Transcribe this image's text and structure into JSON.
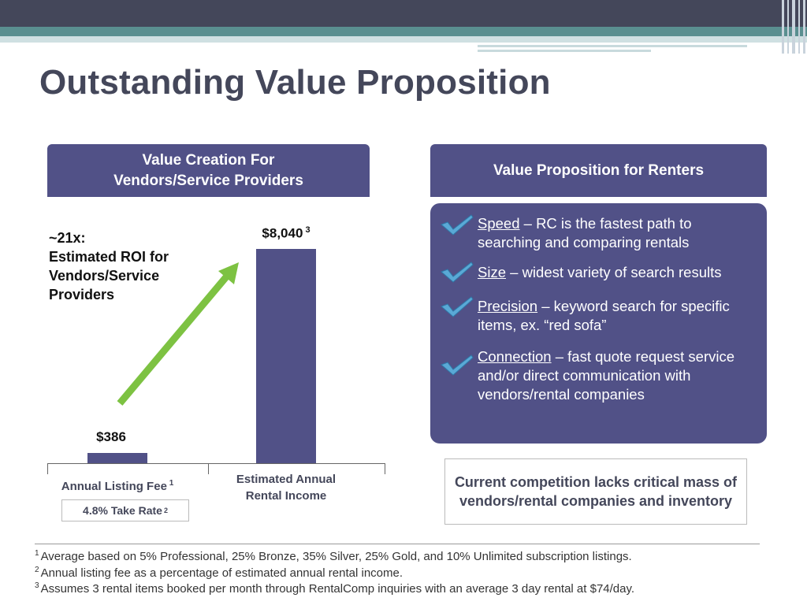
{
  "slide": {
    "title": "Outstanding Value Proposition"
  },
  "left_panel": {
    "header_line1": "Value Creation For",
    "header_line2": "Vendors/Service Providers",
    "roi_line1": "~21x:",
    "roi_line2": "Estimated ROI for",
    "roi_line3": "Vendors/Service",
    "roi_line4": "Providers",
    "take_rate": "4.8% Take Rate",
    "take_rate_note": "2"
  },
  "chart_data": {
    "type": "bar",
    "categories": [
      "Annual Listing Fee",
      "Estimated Annual Rental Income"
    ],
    "category_lines": [
      [
        "Annual Listing Fee"
      ],
      [
        "Estimated Annual",
        "Rental Income"
      ]
    ],
    "category_notes": [
      "1",
      ""
    ],
    "values": [
      386,
      8040
    ],
    "value_labels": [
      "$386",
      "$8,040"
    ],
    "value_notes": [
      "",
      "3"
    ],
    "ylim": [
      0,
      9000
    ],
    "grid": false,
    "annotation": "~21x: Estimated ROI for Vendors/Service Providers"
  },
  "right_panel": {
    "header": "Value Proposition for Renters",
    "items": [
      {
        "keyword": "Speed",
        "text": " – RC is the fastest path to searching and comparing rentals"
      },
      {
        "keyword": "Size",
        "text": " – widest variety of search results"
      },
      {
        "keyword": "Precision",
        "text": " – keyword search for specific items, ex. “red sofa”"
      },
      {
        "keyword": "Connection",
        "text": " – fast quote request service and/or direct communication  with vendors/rental companies"
      }
    ],
    "competition": "Current competition lacks critical mass of vendors/rental companies and inventory"
  },
  "footnotes": [
    {
      "num": "1",
      "text": "Average based on 5% Professional, 25% Bronze, 35% Silver, 25% Gold, and 10% Unlimited subscription listings."
    },
    {
      "num": "2",
      "text": "Annual listing fee as a percentage of estimated annual rental income."
    },
    {
      "num": "3",
      "text": "Assumes 3 rental items booked per month through RentalComp inquiries with an average 3 day rental at $74/day."
    }
  ],
  "colors": {
    "primary": "#515187",
    "title": "#44475a",
    "arrow": "#7dc242",
    "check": "#5aa9d6"
  }
}
